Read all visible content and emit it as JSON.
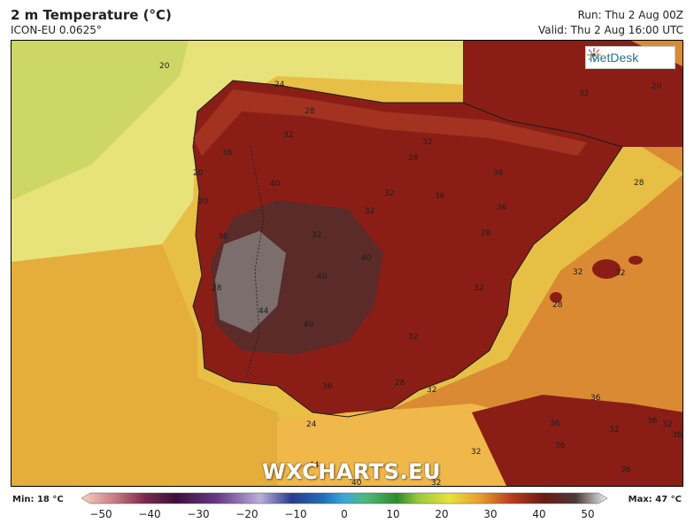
{
  "header": {
    "title": "2 m Temperature (°C)",
    "model": "ICON-EU 0.0625°",
    "run": "Run: Thu 2 Aug 00Z",
    "valid": "Valid: Thu 2 Aug 16:00 UTC"
  },
  "logo": {
    "text": "MetDesk"
  },
  "watermark": "WXCHARTS.EU",
  "map": {
    "region": "Iberian Peninsula",
    "variable": "2 m temperature",
    "units": "°C",
    "contour_labels": [
      "20",
      "24",
      "28",
      "32",
      "20",
      "36",
      "32",
      "40",
      "28",
      "36",
      "32",
      "36",
      "36",
      "20",
      "28",
      "20",
      "32",
      "36",
      "32",
      "28",
      "40",
      "32",
      "40",
      "32",
      "44",
      "40",
      "32",
      "28",
      "36",
      "32",
      "32",
      "36",
      "28",
      "24",
      "36",
      "36",
      "32",
      "32",
      "36",
      "32",
      "36",
      "36",
      "44",
      "40",
      "32",
      "28",
      "32"
    ]
  },
  "colorbar": {
    "min_label": "Min: 18 °C",
    "max_label": "Max: 47 °C",
    "ticks": [
      "−50",
      "−40",
      "−30",
      "−20",
      "−10",
      "0",
      "10",
      "20",
      "30",
      "40",
      "50"
    ]
  },
  "colors": {
    "ocean_warm": "#e8bf45",
    "ocean_cool": "#e8e27a",
    "land_hot": "#8a1e16",
    "land_very_hot": "#5a2b29",
    "land_extreme": "#7c6e6c"
  }
}
